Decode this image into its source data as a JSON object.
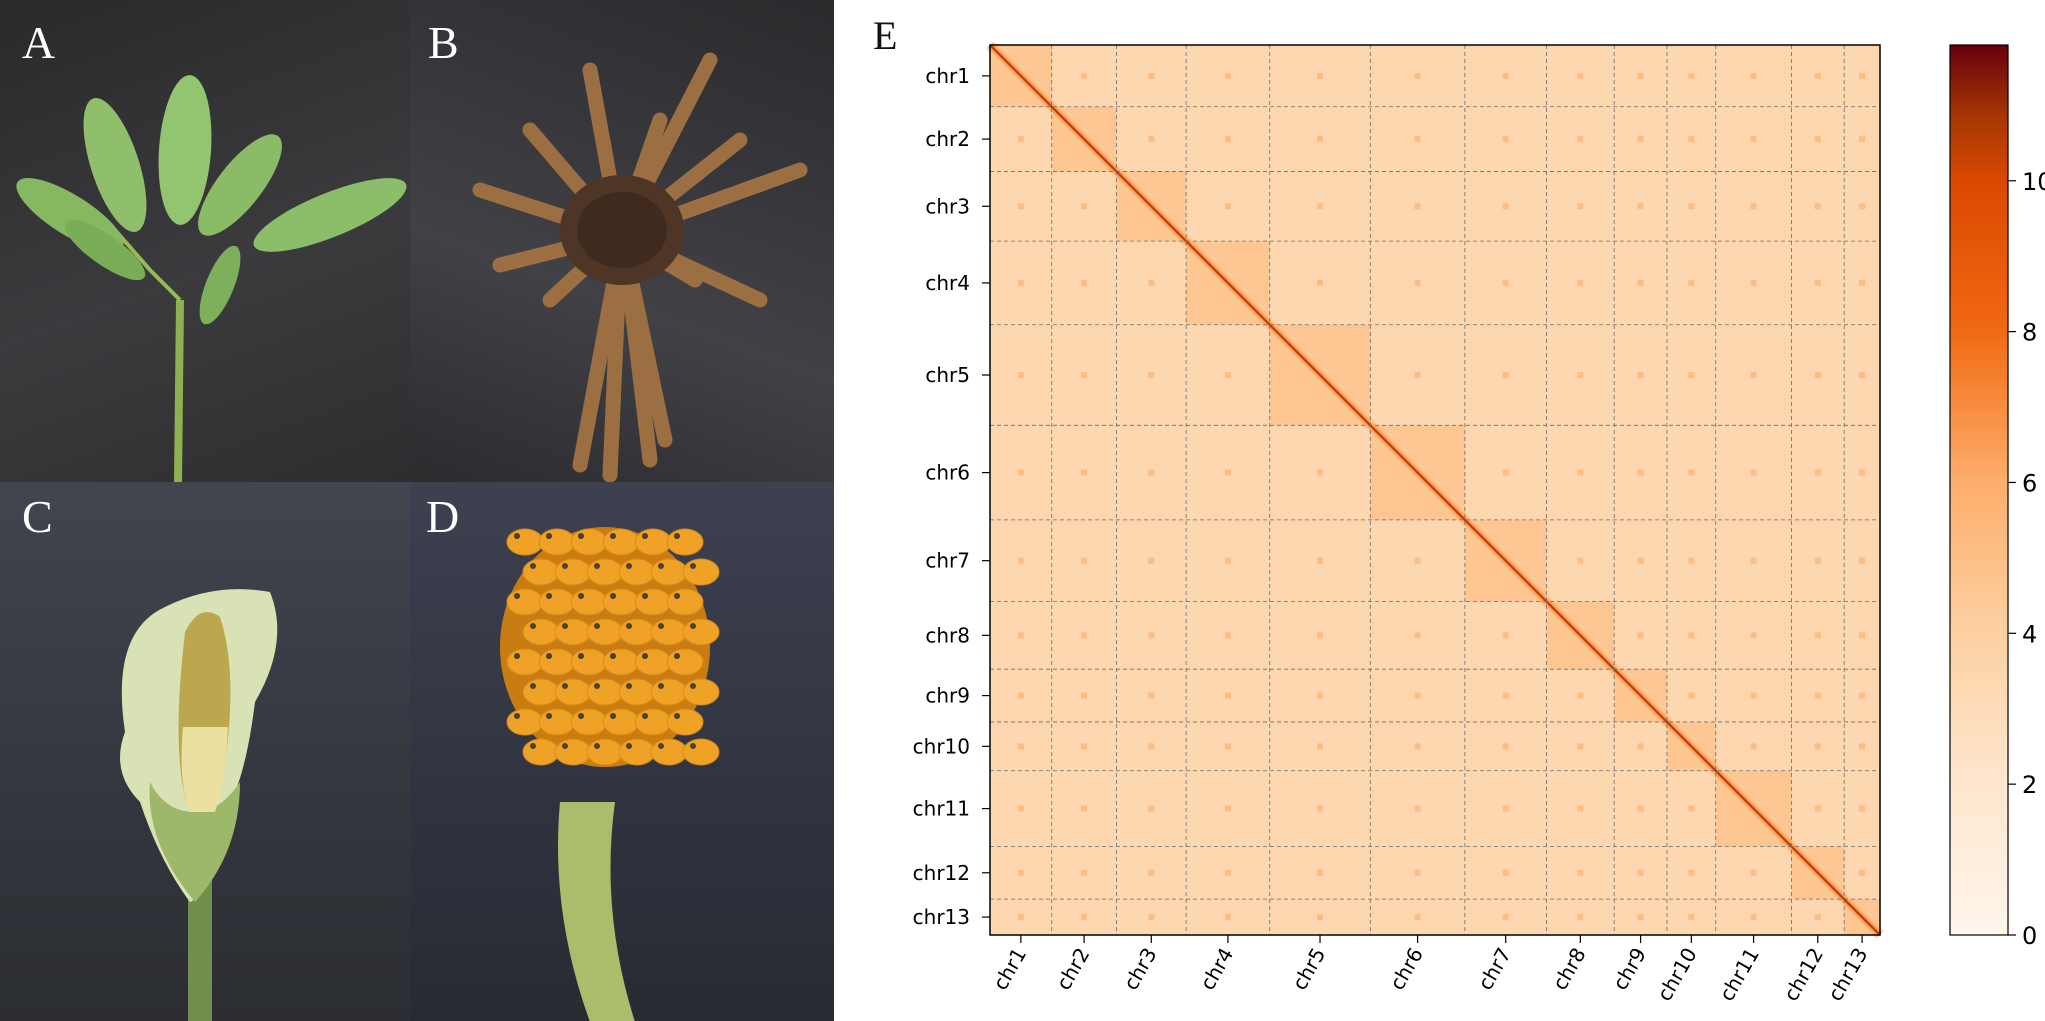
{
  "panels": {
    "a": {
      "label": "A"
    },
    "b": {
      "label": "B"
    },
    "c": {
      "label": "C"
    },
    "d": {
      "label": "D"
    },
    "e": {
      "label": "E"
    }
  },
  "colors": {
    "heatmap_background": "#fbd3a9",
    "diagonal": "#c0241a",
    "colorbar_top": "#67000d",
    "colorbar_bottom": "#fff5eb"
  },
  "chart_data": {
    "type": "heatmap",
    "title": "",
    "xlabel": "",
    "ylabel": "",
    "colormap": "Reds",
    "chromosomes": [
      "chr1",
      "chr2",
      "chr3",
      "chr4",
      "chr5",
      "chr6",
      "chr7",
      "chr8",
      "chr9",
      "chr10",
      "chr11",
      "chr12",
      "chr13"
    ],
    "relative_lengths": [
      62,
      65,
      70,
      84,
      101,
      95,
      82,
      68,
      53,
      49,
      76,
      53,
      36
    ],
    "colorbar": {
      "ticks": [
        0,
        2,
        4,
        6,
        8,
        10
      ],
      "range": [
        0,
        11.8
      ]
    },
    "diagonal_value": 10.5,
    "intra_chromosome_value": 4.6,
    "inter_chromosome_value": 3.4,
    "centromere_contact_value": 5.2,
    "grid": true,
    "grid_style": "dashed"
  }
}
